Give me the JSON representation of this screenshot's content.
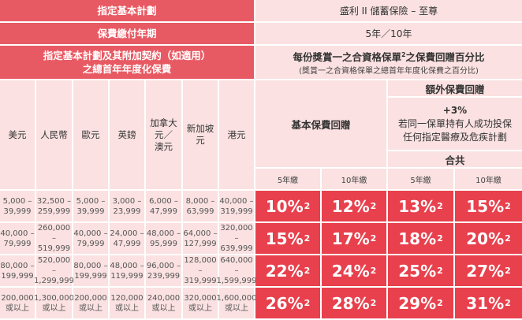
{
  "rows": {
    "plan_label": "指定基本計劃",
    "plan_value": "盛利 II 儲蓄保險 – 至尊",
    "term_label": "保費繳付年期",
    "term_value": "5年／10年",
    "premium_label_line1": "指定基本計劃及其附加契約（如適用）",
    "premium_label_line2": "之總首年年度化保費",
    "rebate_title_main": "每份獎賞一之合資格保單",
    "rebate_title_sup": "2",
    "rebate_title_tail": "之保費回贈百分比",
    "rebate_subtitle": "(獎賞一之合資格保單之總首年年度化保費之百分比)"
  },
  "columns": {
    "basic_rebate": "基本保費回贈",
    "extra_rebate": "額外保費回贈",
    "extra_pct": "+3%",
    "extra_desc_line1": "若同一保單持有人成功投保",
    "extra_desc_line2": "任何指定醫療及危疾計劃",
    "total": "合共",
    "pay5": "5年繳",
    "pay10": "10年繳"
  },
  "currencies": [
    {
      "lines": [
        "美元"
      ]
    },
    {
      "lines": [
        "人民幣"
      ]
    },
    {
      "lines": [
        "歐元"
      ]
    },
    {
      "lines": [
        "英鎊"
      ]
    },
    {
      "lines": [
        "加拿大",
        "元／",
        "澳元"
      ]
    },
    {
      "lines": [
        "新加坡",
        "元"
      ]
    },
    {
      "lines": [
        "港元"
      ]
    }
  ],
  "tiers": [
    {
      "amounts": [
        [
          "5,000 –",
          "39,999"
        ],
        [
          "32,500 –",
          "259,999"
        ],
        [
          "5,000 –",
          "39,999"
        ],
        [
          "3,000 –",
          "23,999"
        ],
        [
          "6,000 –",
          "47,999"
        ],
        [
          "8,000 –",
          "63,999"
        ],
        [
          "40,000 –",
          "319,999"
        ]
      ],
      "rates": [
        "10%",
        "12%",
        "13%",
        "15%"
      ]
    },
    {
      "amounts": [
        [
          "40,000 –",
          "79,999"
        ],
        [
          "260,000 –",
          "519,999"
        ],
        [
          "40,000 –",
          "79,999"
        ],
        [
          "24,000 –",
          "47,999"
        ],
        [
          "48,000 –",
          "95,999"
        ],
        [
          "64,000 –",
          "127,999"
        ],
        [
          "320,000 –",
          "639,999"
        ]
      ],
      "rates": [
        "15%",
        "17%",
        "18%",
        "20%"
      ]
    },
    {
      "amounts": [
        [
          "80,000 –",
          "199,999"
        ],
        [
          "520,000 –",
          "1,299,999"
        ],
        [
          "80,000 –",
          "199,999"
        ],
        [
          "48,000 –",
          "119,999"
        ],
        [
          "96,000 –",
          "239,999"
        ],
        [
          "128,000 –",
          "319,999"
        ],
        [
          "640,000 –",
          "1,599,999"
        ]
      ],
      "rates": [
        "22%",
        "24%",
        "25%",
        "27%"
      ]
    },
    {
      "amounts": [
        [
          "200,000",
          "或以上"
        ],
        [
          "1,300,000",
          "或以上"
        ],
        [
          "200,000",
          "或以上"
        ],
        [
          "120,000",
          "或以上"
        ],
        [
          "240,000",
          "或以上"
        ],
        [
          "320,000",
          "或以上"
        ],
        [
          "1,600,000",
          "或以上"
        ]
      ],
      "rates": [
        "26%",
        "28%",
        "29%",
        "31%"
      ]
    }
  ],
  "rate_sup": "2",
  "colors": {
    "header": "#e85a63",
    "light": "#fbe1e1",
    "rate": "#e8404d",
    "border": "#ffffff"
  }
}
